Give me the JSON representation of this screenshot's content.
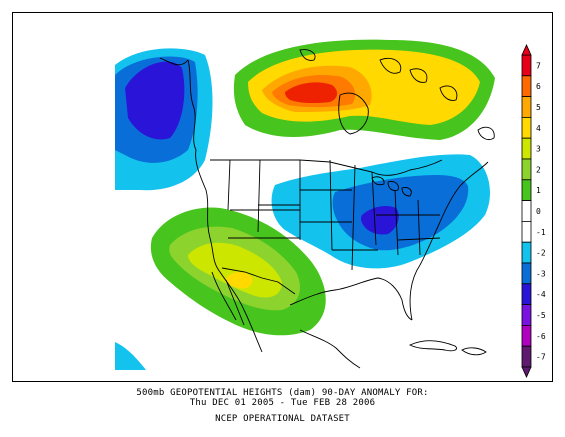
{
  "caption": {
    "line1": "500mb GEOPOTENTIAL HEIGHTS (dam)   90-DAY ANOMALY FOR:",
    "line2": "Thu DEC 01 2005 - Tue FEB 28 2006",
    "line3": "NCEP OPERATIONAL DATASET"
  },
  "colorbar": {
    "levels": [
      {
        "label": "7",
        "color": "#e8001a"
      },
      {
        "label": "6",
        "color": "#ff6a00"
      },
      {
        "label": "5",
        "color": "#ffa800"
      },
      {
        "label": "4",
        "color": "#ffd900"
      },
      {
        "label": "3",
        "color": "#cde600"
      },
      {
        "label": "2",
        "color": "#8cd42d"
      },
      {
        "label": "1",
        "color": "#48c41e"
      },
      {
        "label": "0",
        "color": "#ffffff"
      },
      {
        "label": "-1",
        "color": "#ffffff"
      },
      {
        "label": "-2",
        "color": "#14c2ee"
      },
      {
        "label": "-3",
        "color": "#0a6ed8"
      },
      {
        "label": "-4",
        "color": "#2a14d8"
      },
      {
        "label": "-5",
        "color": "#7a12e0"
      },
      {
        "label": "-6",
        "color": "#b000c0"
      },
      {
        "label": "-7",
        "color": "#5e1a6e"
      }
    ]
  },
  "colors": {
    "red": "#ee2200",
    "orange": "#ff7a00",
    "orange_light": "#ffa800",
    "yellow": "#ffd900",
    "yellow_green": "#cde600",
    "light_green": "#8cd42d",
    "green": "#48c41e",
    "cyan": "#14c2ee",
    "blue": "#0a6ed8",
    "dark_blue": "#2a14d8",
    "border": "#000000"
  }
}
